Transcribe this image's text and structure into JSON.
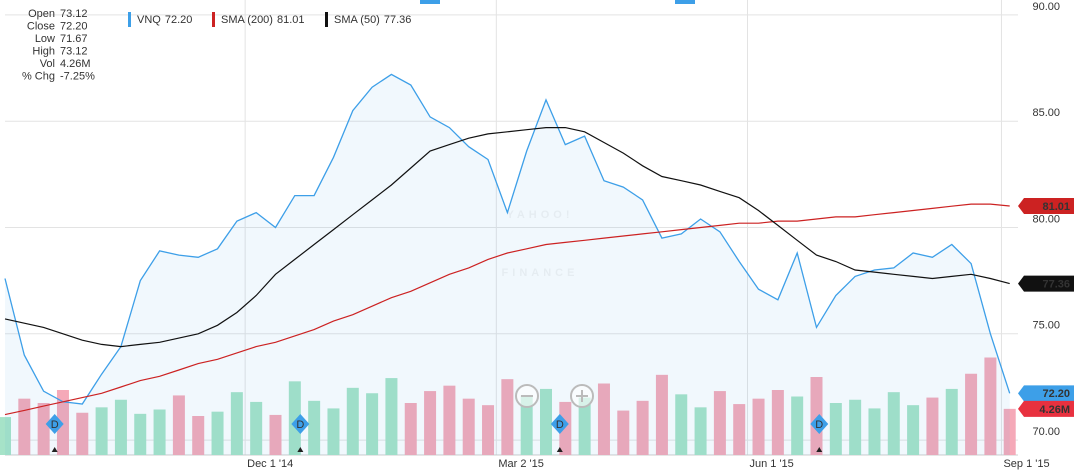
{
  "chart_data": {
    "type": "line",
    "watermark": [
      "YAHOO!",
      "FINANCE"
    ],
    "ohlc": [
      {
        "label": "Open",
        "value": "73.12"
      },
      {
        "label": "Close",
        "value": "72.20"
      },
      {
        "label": "Low",
        "value": "71.67"
      },
      {
        "label": "High",
        "value": "73.12"
      },
      {
        "label": "Vol",
        "value": "4.26M"
      },
      {
        "label": "% Chg",
        "value": "-7.25%"
      }
    ],
    "x": [
      "2014-09-05",
      "2014-09-12",
      "2014-09-19",
      "2014-09-26",
      "2014-10-03",
      "2014-10-10",
      "2014-10-17",
      "2014-10-24",
      "2014-10-31",
      "2014-11-07",
      "2014-11-14",
      "2014-11-21",
      "2014-11-28",
      "2014-12-05",
      "2014-12-12",
      "2014-12-19",
      "2014-12-26",
      "2015-01-02",
      "2015-01-09",
      "2015-01-16",
      "2015-01-23",
      "2015-01-30",
      "2015-02-06",
      "2015-02-13",
      "2015-02-20",
      "2015-02-27",
      "2015-03-06",
      "2015-03-13",
      "2015-03-20",
      "2015-03-27",
      "2015-04-03",
      "2015-04-10",
      "2015-04-17",
      "2015-04-24",
      "2015-05-01",
      "2015-05-08",
      "2015-05-15",
      "2015-05-22",
      "2015-05-29",
      "2015-06-05",
      "2015-06-12",
      "2015-06-19",
      "2015-06-26",
      "2015-07-03",
      "2015-07-10",
      "2015-07-17",
      "2015-07-24",
      "2015-07-31",
      "2015-08-07",
      "2015-08-14",
      "2015-08-21",
      "2015-08-28",
      "2015-09-04"
    ],
    "series": [
      {
        "name": "VNQ",
        "color": "#3d9fe8",
        "current": {
          "value": 72.2,
          "label": "72.20"
        },
        "values": [
          77.6,
          74.0,
          72.3,
          71.8,
          71.7,
          73.1,
          74.4,
          77.5,
          78.9,
          78.7,
          78.6,
          79.0,
          80.3,
          80.7,
          80.0,
          81.5,
          81.5,
          83.3,
          85.5,
          86.6,
          87.2,
          86.7,
          85.2,
          84.7,
          83.8,
          83.2,
          80.7,
          83.6,
          86.0,
          83.9,
          84.3,
          82.2,
          81.9,
          81.3,
          79.5,
          79.7,
          80.4,
          79.8,
          78.4,
          77.1,
          76.6,
          78.8,
          75.3,
          76.8,
          77.7,
          78.0,
          78.1,
          78.8,
          78.6,
          79.2,
          78.3,
          75.0,
          72.2
        ]
      },
      {
        "name": "SMA (200)",
        "color": "#cc2222",
        "current": {
          "value": 81.01,
          "label": "81.01"
        },
        "values": [
          71.2,
          71.4,
          71.6,
          71.8,
          72.0,
          72.2,
          72.5,
          72.8,
          73.0,
          73.3,
          73.6,
          73.8,
          74.1,
          74.4,
          74.6,
          74.9,
          75.2,
          75.6,
          75.9,
          76.3,
          76.7,
          77.0,
          77.4,
          77.8,
          78.1,
          78.5,
          78.8,
          79.0,
          79.2,
          79.3,
          79.4,
          79.5,
          79.6,
          79.7,
          79.8,
          79.9,
          80.0,
          80.1,
          80.2,
          80.2,
          80.3,
          80.3,
          80.4,
          80.5,
          80.5,
          80.6,
          80.7,
          80.8,
          80.9,
          81.0,
          81.1,
          81.1,
          81.01
        ]
      },
      {
        "name": "SMA (50)",
        "color": "#111111",
        "current": {
          "value": 77.36,
          "label": "77.36"
        },
        "values": [
          75.7,
          75.5,
          75.3,
          75.0,
          74.7,
          74.5,
          74.4,
          74.5,
          74.6,
          74.8,
          75.0,
          75.4,
          76.0,
          76.8,
          77.8,
          78.5,
          79.2,
          79.9,
          80.6,
          81.3,
          82.0,
          82.8,
          83.6,
          83.9,
          84.2,
          84.4,
          84.5,
          84.6,
          84.7,
          84.7,
          84.5,
          84.0,
          83.5,
          82.9,
          82.4,
          82.2,
          82.0,
          81.7,
          81.4,
          80.8,
          80.1,
          79.4,
          78.7,
          78.4,
          78.0,
          77.9,
          77.8,
          77.7,
          77.6,
          77.7,
          77.8,
          77.6,
          77.36
        ]
      }
    ],
    "volume": {
      "axis": "y2",
      "up_color": "#a6e3c8",
      "down_color": "#f5a9b8",
      "current": {
        "value": 4.26,
        "label": "4.26M"
      },
      "values": [
        3.5,
        5.2,
        4.8,
        6.0,
        3.9,
        4.4,
        5.1,
        3.8,
        4.2,
        5.5,
        3.6,
        4.0,
        5.8,
        4.9,
        3.7,
        6.8,
        5.0,
        4.3,
        6.2,
        5.7,
        7.1,
        4.8,
        5.9,
        6.4,
        5.2,
        4.6,
        7.0,
        5.5,
        6.1,
        4.9,
        5.3,
        6.6,
        4.1,
        5.0,
        7.4,
        5.6,
        4.4,
        5.9,
        4.7,
        5.2,
        6.0,
        5.4,
        7.2,
        4.8,
        5.1,
        4.3,
        5.8,
        4.6,
        5.3,
        6.1,
        7.5,
        9.0,
        4.26
      ]
    },
    "dividends": {
      "label": "D",
      "dates": [
        "2014-09-23",
        "2014-12-21",
        "2015-03-25",
        "2015-06-27"
      ]
    },
    "xlim": [
      "2014-09-05",
      "2015-09-07"
    ],
    "xticks": [
      {
        "value": "2014-12-01",
        "label": "Dec 1 '14"
      },
      {
        "value": "2015-03-02",
        "label": "Mar 2 '15"
      },
      {
        "value": "2015-06-01",
        "label": "Jun 1 '15"
      },
      {
        "value": "2015-09-01",
        "label": "Sep 1 '15"
      }
    ],
    "ylim": [
      69.3,
      90.7
    ],
    "yticks": [
      {
        "value": 70,
        "label": "70.00"
      },
      {
        "value": 75,
        "label": "75.00"
      },
      {
        "value": 80,
        "label": "80.00"
      },
      {
        "value": 85,
        "label": "85.00"
      },
      {
        "value": 90,
        "label": "90.00"
      }
    ],
    "y2lim": [
      0,
      42
    ],
    "grid": true
  }
}
